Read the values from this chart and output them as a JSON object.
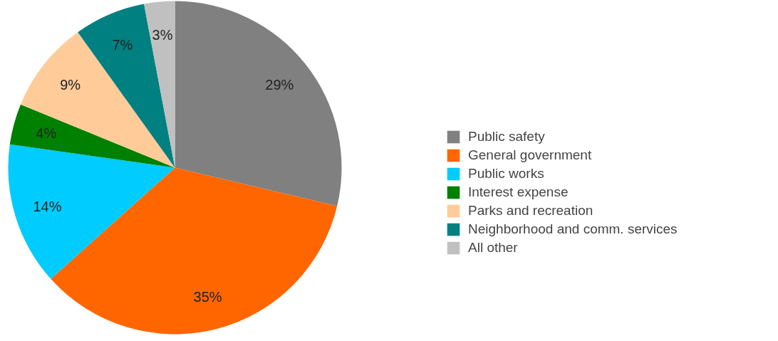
{
  "chart_data": {
    "type": "pie",
    "categories": [
      "Public safety",
      "General government",
      "Public works",
      "Interest expense",
      "Parks and recreation",
      "Neighborhood and comm. services",
      "All other"
    ],
    "values": [
      29,
      35,
      14,
      4,
      9,
      7,
      3
    ],
    "colors": [
      "#808080",
      "#ff6600",
      "#00ccff",
      "#008000",
      "#ffcc99",
      "#008080",
      "#c0c0c0"
    ],
    "value_labels": [
      "29%",
      "35%",
      "14%",
      "4%",
      "9%",
      "7%",
      "3%"
    ],
    "legend": "right"
  }
}
